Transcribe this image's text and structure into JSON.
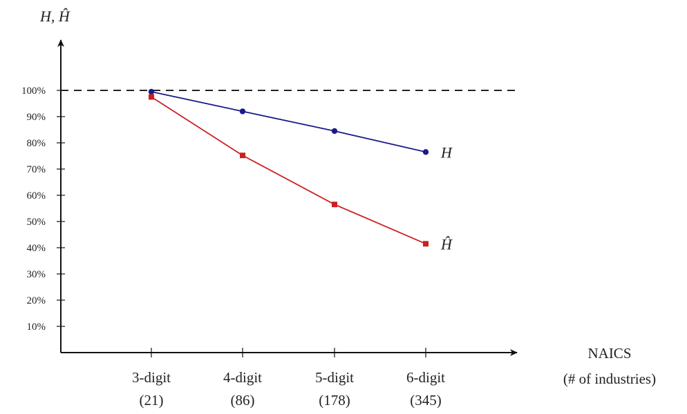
{
  "chart_data": {
    "type": "line",
    "title": "",
    "ylabel": "H, Ĥ",
    "xlabel": [
      "NAICS",
      "(# of industries)"
    ],
    "categories": [
      "3-digit",
      "4-digit",
      "5-digit",
      "6-digit"
    ],
    "category_sublabels": [
      "(21)",
      "(86)",
      "(178)",
      "(345)"
    ],
    "yticks": [
      "10%",
      "20%",
      "30%",
      "40%",
      "50%",
      "60%",
      "70%",
      "80%",
      "90%",
      "100%"
    ],
    "ytick_values": [
      10,
      20,
      30,
      40,
      50,
      60,
      70,
      80,
      90,
      100
    ],
    "ylim": [
      0,
      110
    ],
    "reference_line": {
      "value": 100,
      "style": "dashed",
      "color": "#222222"
    },
    "grid": false,
    "series": [
      {
        "name": "H",
        "values": [
          99.5,
          92,
          84.5,
          76.5
        ],
        "color": "#1a1a8c",
        "marker": "circle"
      },
      {
        "name": "Ĥ",
        "values": [
          97.5,
          75.2,
          56.5,
          41.5
        ],
        "color": "#cc1f1f",
        "marker": "square"
      }
    ]
  }
}
